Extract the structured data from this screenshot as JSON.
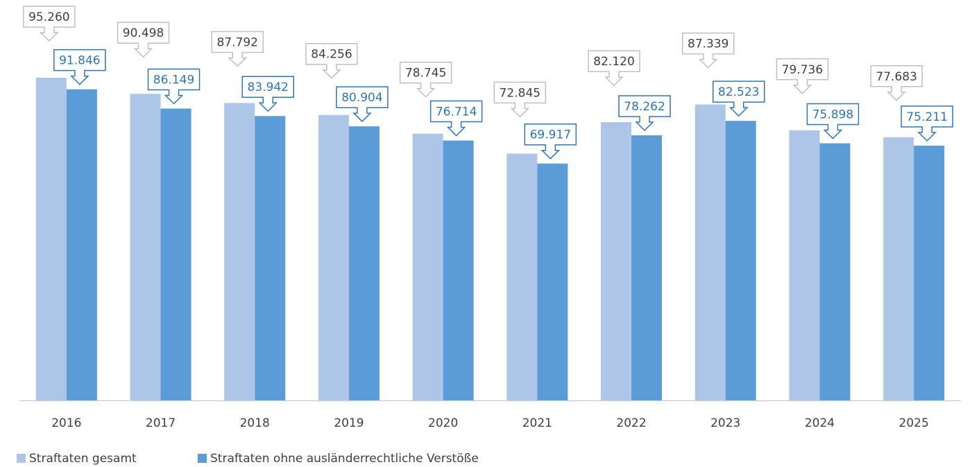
{
  "chart_data": {
    "type": "bar",
    "categories": [
      "2016",
      "2017",
      "2018",
      "2019",
      "2020",
      "2021",
      "2022",
      "2023",
      "2024",
      "2025"
    ],
    "series": [
      {
        "name": "Straftaten gesamt",
        "color": "#adc5e6",
        "values": [
          95260,
          90498,
          87792,
          84256,
          78745,
          72845,
          82120,
          87339,
          79736,
          77683
        ],
        "value_labels": [
          "95.260",
          "90.498",
          "87.792",
          "84.256",
          "78.745",
          "72.845",
          "82.120",
          "87.339",
          "79.736",
          "77.683"
        ]
      },
      {
        "name": "Straftaten ohne ausländerrechtliche Verstöße",
        "color": "#5b9bd6",
        "values": [
          91846,
          86149,
          83942,
          80904,
          76714,
          69917,
          78262,
          82523,
          75898,
          75211
        ],
        "value_labels": [
          "91.846",
          "86.149",
          "83.942",
          "80.904",
          "76.714",
          "69.917",
          "78.262",
          "82.523",
          "75.898",
          "75.211"
        ]
      }
    ],
    "legend": "bottom-left"
  }
}
